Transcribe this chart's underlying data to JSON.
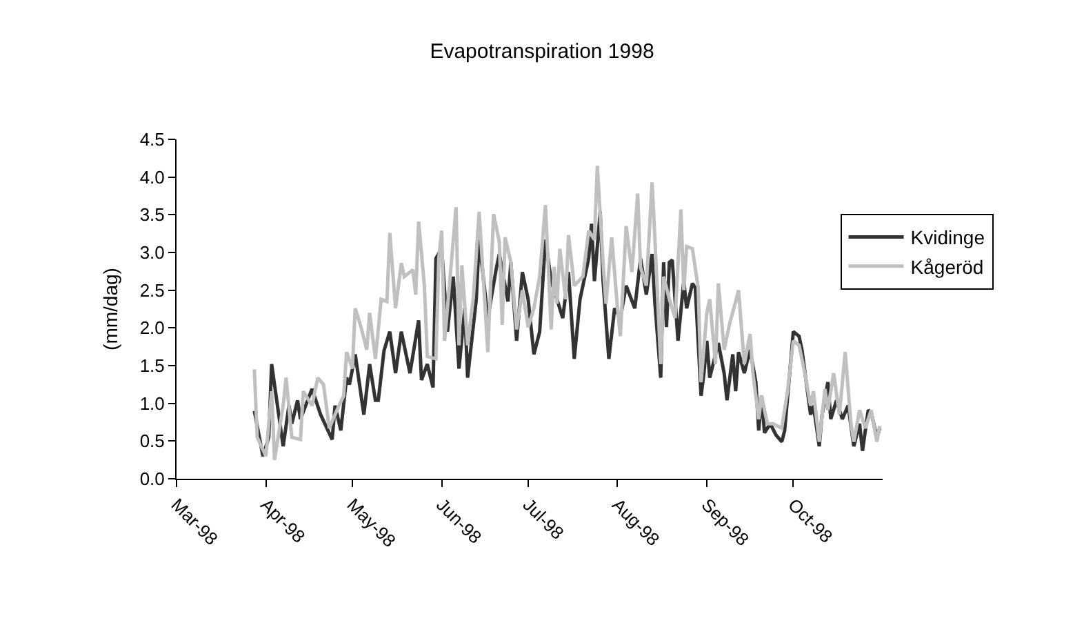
{
  "chart_data": {
    "type": "line",
    "title": "Evapotranspiration 1998",
    "ylabel": "(mm/dag)",
    "xlim": [
      "1998-03-01",
      "1998-11-01"
    ],
    "xticks": [
      {
        "value": "1998-03-01",
        "label": "Mar-98"
      },
      {
        "value": "1998-04-01",
        "label": "Apr-98"
      },
      {
        "value": "1998-05-01",
        "label": "May-98"
      },
      {
        "value": "1998-06-01",
        "label": "Jun-98"
      },
      {
        "value": "1998-07-01",
        "label": "Jul-98"
      },
      {
        "value": "1998-08-01",
        "label": "Aug-98"
      },
      {
        "value": "1998-09-01",
        "label": "Sep-98"
      },
      {
        "value": "1998-10-01",
        "label": "Oct-98"
      }
    ],
    "ylim": [
      0,
      4.5
    ],
    "yticks": [
      {
        "value": 0,
        "label": "0.0"
      },
      {
        "value": 0.5,
        "label": "0.5"
      },
      {
        "value": 1,
        "label": "1.0"
      },
      {
        "value": 1.5,
        "label": "1.5"
      },
      {
        "value": 2,
        "label": "2.0"
      },
      {
        "value": 2.5,
        "label": "2.5"
      },
      {
        "value": 3,
        "label": "3.0"
      },
      {
        "value": 3.5,
        "label": "3.5"
      },
      {
        "value": 4,
        "label": "4.0"
      },
      {
        "value": 4.5,
        "label": "4.5"
      }
    ],
    "legend": "right",
    "marker": "none",
    "line_style": "solid",
    "series": [
      {
        "name": "Kvidinge",
        "color": "#333333",
        "x": [
          "1998-03-28",
          "1998-03-31",
          "1998-04-02",
          "1998-04-03",
          "1998-04-07",
          "1998-04-09",
          "1998-04-10",
          "1998-04-12",
          "1998-04-13",
          "1998-04-17",
          "1998-04-20",
          "1998-04-24",
          "1998-04-25",
          "1998-04-27",
          "1998-04-29",
          "1998-04-30",
          "1998-05-02",
          "1998-05-05",
          "1998-05-07",
          "1998-05-09",
          "1998-05-10",
          "1998-05-12",
          "1998-05-14",
          "1998-05-16",
          "1998-05-18",
          "1998-05-21",
          "1998-05-24",
          "1998-05-25",
          "1998-05-27",
          "1998-05-29",
          "1998-05-30",
          "1998-06-01",
          "1998-06-03",
          "1998-06-05",
          "1998-06-07",
          "1998-06-09",
          "1998-06-10",
          "1998-06-13",
          "1998-06-14",
          "1998-06-17",
          "1998-06-20",
          "1998-06-21",
          "1998-06-24",
          "1998-06-25",
          "1998-06-27",
          "1998-06-29",
          "1998-07-01",
          "1998-07-03",
          "1998-07-05",
          "1998-07-07",
          "1998-07-09",
          "1998-07-11",
          "1998-07-13",
          "1998-07-15",
          "1998-07-17",
          "1998-07-19",
          "1998-07-22",
          "1998-07-23",
          "1998-07-24",
          "1998-07-26",
          "1998-07-27",
          "1998-07-29",
          "1998-07-31",
          "1998-08-02",
          "1998-08-04",
          "1998-08-07",
          "1998-08-09",
          "1998-08-11",
          "1998-08-13",
          "1998-08-14",
          "1998-08-16",
          "1998-08-17",
          "1998-08-18",
          "1998-08-19",
          "1998-08-20",
          "1998-08-22",
          "1998-08-24",
          "1998-08-25",
          "1998-08-27",
          "1998-08-28",
          "1998-08-30",
          "1998-08-31",
          "1998-09-01",
          "1998-09-02",
          "1998-09-05",
          "1998-09-07",
          "1998-09-08",
          "1998-09-10",
          "1998-09-11",
          "1998-09-12",
          "1998-09-14",
          "1998-09-16",
          "1998-09-18",
          "1998-09-19",
          "1998-09-20",
          "1998-09-21",
          "1998-09-23",
          "1998-09-25",
          "1998-09-27",
          "1998-09-28",
          "1998-10-01",
          "1998-10-03",
          "1998-10-04",
          "1998-10-07",
          "1998-10-08",
          "1998-10-10",
          "1998-10-11",
          "1998-10-13",
          "1998-10-14",
          "1998-10-16",
          "1998-10-18",
          "1998-10-20",
          "1998-10-22",
          "1998-10-24",
          "1998-10-25",
          "1998-10-27",
          "1998-10-28",
          "1998-10-30",
          "1998-10-31"
        ],
        "values": [
          0.9,
          0.3,
          0.55,
          1.52,
          0.43,
          0.97,
          0.73,
          1.04,
          0.79,
          1.19,
          0.85,
          0.52,
          0.97,
          0.64,
          1.34,
          1.25,
          1.65,
          0.85,
          1.52,
          1.04,
          1.04,
          1.7,
          1.95,
          1.4,
          1.95,
          1.4,
          2.1,
          1.31,
          1.52,
          1.21,
          2.92,
          3.05,
          1.95,
          2.68,
          1.46,
          2.26,
          1.34,
          2.38,
          3.17,
          2.13,
          2.8,
          2.98,
          2.35,
          2.87,
          1.83,
          2.74,
          2.38,
          1.65,
          1.95,
          3.17,
          2.62,
          2.38,
          2.13,
          2.74,
          1.59,
          2.38,
          2.92,
          3.38,
          2.62,
          3.54,
          2.62,
          1.59,
          2.26,
          2.13,
          2.56,
          2.26,
          2.92,
          2.44,
          2.98,
          2.32,
          1.34,
          2.87,
          2.01,
          2.87,
          2.9,
          1.83,
          2.62,
          2.26,
          2.59,
          2.53,
          1.1,
          1.4,
          1.83,
          1.34,
          1.8,
          1.4,
          1.04,
          1.65,
          1.16,
          1.68,
          1.4,
          1.71,
          1.28,
          0.64,
          1.1,
          0.61,
          0.73,
          0.58,
          0.49,
          0.64,
          1.95,
          1.89,
          1.71,
          0.85,
          0.97,
          0.43,
          0.85,
          1.28,
          0.79,
          1.04,
          0.79,
          0.97,
          0.43,
          0.73,
          0.37,
          0.91,
          0.88,
          0.55,
          0.67
        ]
      },
      {
        "name": "Kågeröd",
        "color": "#c0c0c0",
        "x": [
          "1998-03-28",
          "1998-03-29",
          "1998-04-01",
          "1998-04-03",
          "1998-04-04",
          "1998-04-07",
          "1998-04-08",
          "1998-04-10",
          "1998-04-13",
          "1998-04-14",
          "1998-04-17",
          "1998-04-19",
          "1998-04-21",
          "1998-04-23",
          "1998-04-26",
          "1998-04-28",
          "1998-04-29",
          "1998-05-01",
          "1998-05-02",
          "1998-05-04",
          "1998-05-06",
          "1998-05-07",
          "1998-05-09",
          "1998-05-11",
          "1998-05-13",
          "1998-05-14",
          "1998-05-16",
          "1998-05-18",
          "1998-05-19",
          "1998-05-22",
          "1998-05-23",
          "1998-05-24",
          "1998-05-26",
          "1998-05-27",
          "1998-05-30",
          "1998-05-31",
          "1998-06-01",
          "1998-06-02",
          "1998-06-03",
          "1998-06-06",
          "1998-06-07",
          "1998-06-08",
          "1998-06-10",
          "1998-06-12",
          "1998-06-14",
          "1998-06-16",
          "1998-06-17",
          "1998-06-19",
          "1998-06-21",
          "1998-06-22",
          "1998-06-23",
          "1998-06-25",
          "1998-06-27",
          "1998-06-29",
          "1998-07-01",
          "1998-07-03",
          "1998-07-05",
          "1998-07-07",
          "1998-07-09",
          "1998-07-10",
          "1998-07-11",
          "1998-07-12",
          "1998-07-14",
          "1998-07-15",
          "1998-07-17",
          "1998-07-20",
          "1998-07-22",
          "1998-07-24",
          "1998-07-25",
          "1998-07-27",
          "1998-07-28",
          "1998-07-30",
          "1998-08-01",
          "1998-08-02",
          "1998-08-04",
          "1998-08-06",
          "1998-08-08",
          "1998-08-09",
          "1998-08-11",
          "1998-08-13",
          "1998-08-14",
          "1998-08-16",
          "1998-08-17",
          "1998-08-19",
          "1998-08-21",
          "1998-08-23",
          "1998-08-24",
          "1998-08-25",
          "1998-08-27",
          "1998-08-29",
          "1998-08-30",
          "1998-09-01",
          "1998-09-02",
          "1998-09-04",
          "1998-09-05",
          "1998-09-07",
          "1998-09-09",
          "1998-09-11",
          "1998-09-12",
          "1998-09-14",
          "1998-09-16",
          "1998-09-17",
          "1998-09-19",
          "1998-09-20",
          "1998-09-22",
          "1998-09-24",
          "1998-09-27",
          "1998-09-29",
          "1998-10-01",
          "1998-10-03",
          "1998-10-05",
          "1998-10-07",
          "1998-10-08",
          "1998-10-10",
          "1998-10-12",
          "1998-10-13",
          "1998-10-15",
          "1998-10-17",
          "1998-10-19",
          "1998-10-21",
          "1998-10-22",
          "1998-10-24",
          "1998-10-26",
          "1998-10-28",
          "1998-10-30",
          "1998-10-31"
        ],
        "values": [
          1.45,
          0.55,
          0.3,
          1.16,
          0.25,
          0.97,
          1.34,
          0.55,
          0.52,
          1.16,
          0.97,
          1.34,
          1.25,
          0.67,
          0.94,
          1.1,
          1.68,
          1.46,
          2.26,
          2.01,
          1.71,
          2.2,
          1.59,
          2.38,
          2.35,
          3.26,
          2.26,
          2.86,
          2.68,
          2.77,
          2.44,
          3.41,
          2.56,
          1.62,
          1.59,
          2.92,
          3.29,
          1.83,
          2.26,
          3.6,
          1.77,
          2.83,
          1.77,
          2.41,
          3.54,
          2.32,
          1.68,
          3.51,
          3.14,
          2.04,
          3.2,
          2.87,
          1.98,
          2.5,
          2.01,
          2.26,
          2.68,
          3.63,
          1.98,
          2.81,
          2.32,
          3.05,
          2.38,
          3.23,
          2.56,
          2.68,
          3.29,
          3.17,
          4.15,
          2.87,
          2.32,
          3.2,
          2.26,
          1.89,
          3.35,
          2.74,
          3.78,
          2.8,
          2.56,
          3.93,
          3.17,
          1.52,
          2.68,
          2.38,
          2.13,
          3.57,
          2.5,
          3.08,
          3.05,
          2.53,
          1.28,
          2.2,
          2.38,
          1.52,
          2.59,
          1.71,
          2.07,
          2.35,
          2.5,
          1.52,
          1.92,
          1.4,
          0.79,
          1.1,
          0.73,
          0.73,
          0.67,
          1.16,
          1.83,
          1.77,
          1.4,
          0.97,
          1.16,
          0.49,
          1.19,
          0.91,
          1.4,
          0.85,
          1.68,
          0.73,
          0.49,
          0.91,
          0.67,
          0.91,
          0.49,
          0.7
        ]
      }
    ]
  }
}
